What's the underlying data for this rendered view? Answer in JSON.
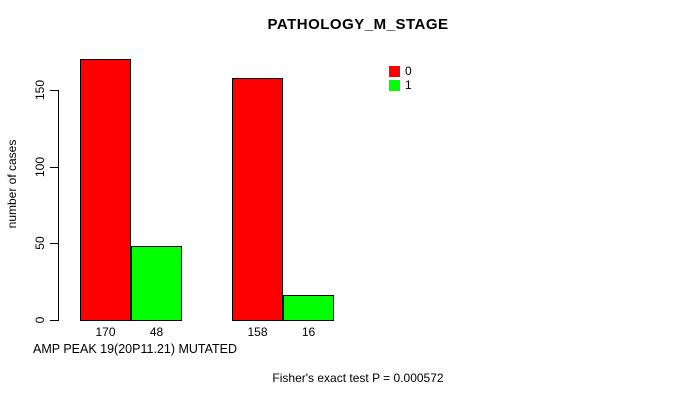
{
  "chart_data": {
    "type": "bar",
    "title": "PATHOLOGY_M_STAGE",
    "ylabel": "number of cases",
    "xlabel": "AMP PEAK 19(20P11.21) MUTATED",
    "annotation": "Fisher's exact test P = 0.000572",
    "yticks": [
      0,
      50,
      100,
      150
    ],
    "ylim": [
      0,
      170
    ],
    "grid": false,
    "legend_position": "top-right",
    "legend": [
      "0",
      "1"
    ],
    "series": [
      {
        "name": "0",
        "color": "#ff0000",
        "values": [
          170,
          158
        ]
      },
      {
        "name": "1",
        "color": "#00ff00",
        "values": [
          48,
          16
        ]
      }
    ],
    "bar_value_labels": [
      [
        "170",
        "48"
      ],
      [
        "158",
        "16"
      ]
    ]
  },
  "colors": {
    "background": "#ffffff",
    "axis": "#000000",
    "text": "#000000",
    "series0": "#ff0000",
    "series1": "#00ff00"
  }
}
